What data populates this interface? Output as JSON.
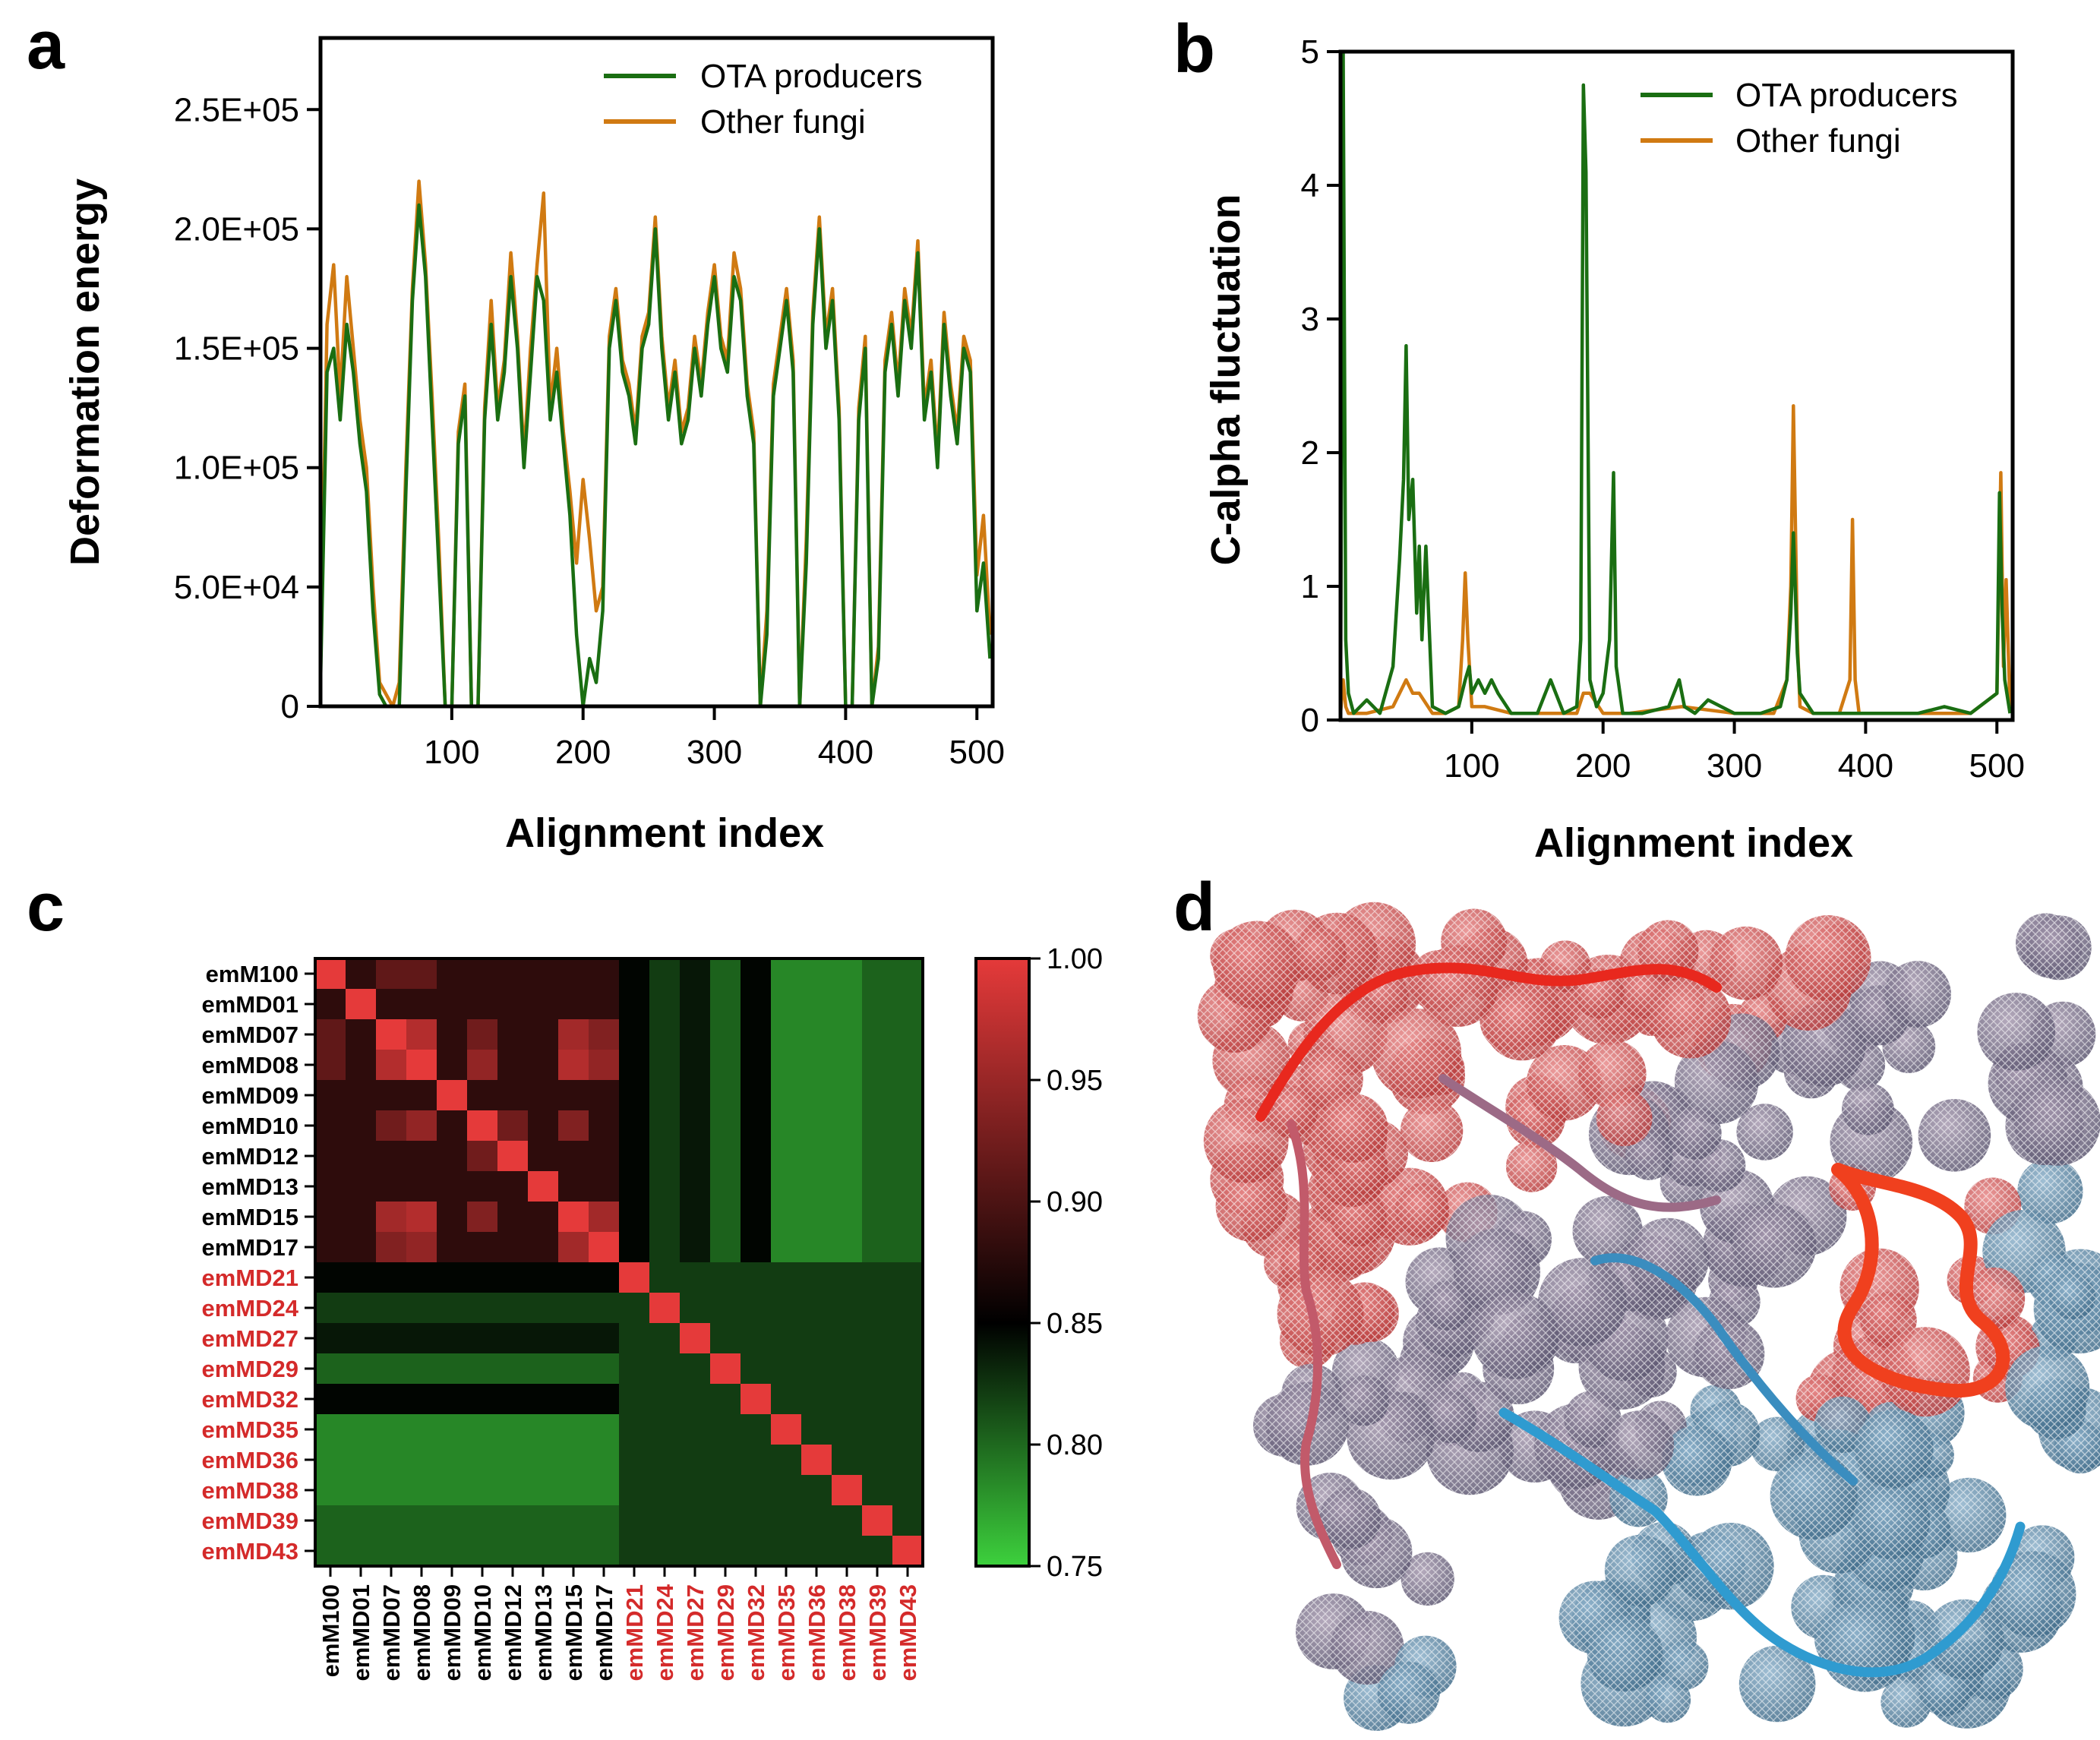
{
  "panels": {
    "a": "a",
    "b": "b",
    "c": "c",
    "d": "d"
  },
  "colors": {
    "ota": "#1a6e12",
    "other": "#d07a12",
    "heat_low": "#3dd13d",
    "heat_mid": "#000000",
    "heat_high": "#e53a3a",
    "label_black": "#000000",
    "label_red": "#d42a2a"
  },
  "chart_data": [
    {
      "id": "a",
      "type": "line",
      "title": "",
      "xlabel": "Alignment index",
      "ylabel": "Deformation energy",
      "xlim": [
        0,
        512
      ],
      "ylim": [
        0,
        280000
      ],
      "xticks": [
        100,
        200,
        300,
        400,
        500
      ],
      "xtick_labels": [
        "100",
        "200",
        "300",
        "400",
        "500"
      ],
      "yticks": [
        0,
        50000,
        100000,
        150000,
        200000,
        250000
      ],
      "ytick_labels": [
        "0",
        "5.0E+04",
        "1.0E+05",
        "1.5E+05",
        "2.0E+05",
        "2.5E+05"
      ],
      "legend": [
        "OTA producers",
        "Other fungi"
      ],
      "legend_position": "top-right",
      "series": [
        {
          "name": "OTA producers",
          "color": "#1a6e12",
          "x": [
            0,
            5,
            10,
            15,
            20,
            25,
            30,
            35,
            40,
            45,
            50,
            55,
            60,
            65,
            70,
            75,
            80,
            85,
            90,
            95,
            100,
            105,
            110,
            115,
            120,
            125,
            130,
            135,
            140,
            145,
            150,
            155,
            160,
            165,
            170,
            175,
            180,
            185,
            190,
            195,
            200,
            205,
            210,
            215,
            220,
            225,
            230,
            235,
            240,
            245,
            250,
            255,
            260,
            265,
            270,
            275,
            280,
            285,
            290,
            295,
            300,
            305,
            310,
            315,
            320,
            325,
            330,
            335,
            340,
            345,
            350,
            355,
            360,
            365,
            370,
            375,
            380,
            385,
            390,
            395,
            400,
            405,
            410,
            415,
            420,
            425,
            430,
            435,
            440,
            445,
            450,
            455,
            460,
            465,
            470,
            475,
            480,
            485,
            490,
            495,
            500,
            505,
            510
          ],
          "values": [
            10000,
            140000,
            150000,
            120000,
            160000,
            140000,
            110000,
            90000,
            40000,
            5000,
            0,
            0,
            0,
            90000,
            170000,
            210000,
            180000,
            120000,
            60000,
            0,
            0,
            110000,
            130000,
            0,
            0,
            120000,
            160000,
            120000,
            140000,
            180000,
            150000,
            100000,
            140000,
            180000,
            170000,
            120000,
            140000,
            110000,
            80000,
            30000,
            0,
            20000,
            10000,
            40000,
            150000,
            170000,
            140000,
            130000,
            110000,
            150000,
            160000,
            200000,
            150000,
            120000,
            140000,
            110000,
            120000,
            150000,
            130000,
            160000,
            180000,
            150000,
            140000,
            180000,
            170000,
            130000,
            110000,
            0,
            30000,
            130000,
            150000,
            170000,
            140000,
            0,
            60000,
            160000,
            200000,
            150000,
            170000,
            120000,
            0,
            0,
            120000,
            150000,
            0,
            20000,
            140000,
            160000,
            130000,
            170000,
            150000,
            190000,
            120000,
            140000,
            100000,
            160000,
            130000,
            110000,
            150000,
            140000,
            40000,
            60000,
            20000
          ]
        },
        {
          "name": "Other fungi",
          "color": "#d07a12",
          "x": [
            0,
            5,
            10,
            15,
            20,
            25,
            30,
            35,
            40,
            45,
            50,
            55,
            60,
            65,
            70,
            75,
            80,
            85,
            90,
            95,
            100,
            105,
            110,
            115,
            120,
            125,
            130,
            135,
            140,
            145,
            150,
            155,
            160,
            165,
            170,
            175,
            180,
            185,
            190,
            195,
            200,
            205,
            210,
            215,
            220,
            225,
            230,
            235,
            240,
            245,
            250,
            255,
            260,
            265,
            270,
            275,
            280,
            285,
            290,
            295,
            300,
            305,
            310,
            315,
            320,
            325,
            330,
            335,
            340,
            345,
            350,
            355,
            360,
            365,
            370,
            375,
            380,
            385,
            390,
            395,
            400,
            405,
            410,
            415,
            420,
            425,
            430,
            435,
            440,
            445,
            450,
            455,
            460,
            465,
            470,
            475,
            480,
            485,
            490,
            495,
            500,
            505,
            510
          ],
          "values": [
            20000,
            160000,
            185000,
            130000,
            180000,
            150000,
            120000,
            100000,
            50000,
            10000,
            5000,
            0,
            10000,
            100000,
            175000,
            220000,
            185000,
            130000,
            70000,
            0,
            0,
            115000,
            135000,
            0,
            0,
            125000,
            170000,
            125000,
            145000,
            190000,
            155000,
            105000,
            150000,
            185000,
            215000,
            125000,
            150000,
            115000,
            90000,
            60000,
            95000,
            70000,
            40000,
            50000,
            155000,
            175000,
            145000,
            135000,
            115000,
            155000,
            165000,
            205000,
            155000,
            125000,
            145000,
            115000,
            125000,
            155000,
            135000,
            165000,
            185000,
            155000,
            145000,
            190000,
            175000,
            135000,
            115000,
            0,
            40000,
            135000,
            155000,
            175000,
            145000,
            0,
            70000,
            165000,
            205000,
            155000,
            175000,
            125000,
            0,
            0,
            125000,
            155000,
            0,
            25000,
            145000,
            165000,
            135000,
            175000,
            155000,
            195000,
            125000,
            145000,
            105000,
            165000,
            135000,
            115000,
            155000,
            145000,
            55000,
            80000,
            30000
          ]
        }
      ]
    },
    {
      "id": "b",
      "type": "line",
      "title": "",
      "xlabel": "Alignment index",
      "ylabel": "C-alpha fluctuation",
      "xlim": [
        0,
        512
      ],
      "ylim": [
        0,
        5
      ],
      "xticks": [
        100,
        200,
        300,
        400,
        500
      ],
      "xtick_labels": [
        "100",
        "200",
        "300",
        "400",
        "500"
      ],
      "yticks": [
        0,
        1,
        2,
        3,
        4,
        5
      ],
      "ytick_labels": [
        "0",
        "1",
        "2",
        "3",
        "4",
        "5"
      ],
      "legend": [
        "OTA producers",
        "Other fungi"
      ],
      "legend_position": "top-right",
      "series": [
        {
          "name": "OTA producers",
          "color": "#1a6e12",
          "x": [
            0,
            2,
            4,
            6,
            10,
            20,
            30,
            40,
            45,
            48,
            50,
            52,
            55,
            58,
            60,
            62,
            65,
            70,
            80,
            90,
            95,
            98,
            100,
            105,
            110,
            115,
            120,
            130,
            150,
            160,
            170,
            180,
            183,
            185,
            187,
            190,
            195,
            200,
            205,
            208,
            210,
            215,
            230,
            250,
            258,
            262,
            270,
            280,
            300,
            320,
            335,
            340,
            343,
            345,
            348,
            350,
            360,
            380,
            390,
            400,
            420,
            440,
            460,
            480,
            500,
            502,
            504,
            506,
            510
          ],
          "x_note": "",
          "values": [
            0.1,
            5.0,
            0.6,
            0.2,
            0.05,
            0.15,
            0.05,
            0.4,
            1.2,
            1.8,
            2.8,
            1.5,
            1.8,
            0.8,
            1.3,
            0.6,
            1.3,
            0.1,
            0.05,
            0.1,
            0.3,
            0.4,
            0.2,
            0.3,
            0.2,
            0.3,
            0.2,
            0.05,
            0.05,
            0.3,
            0.05,
            0.1,
            0.6,
            4.75,
            4.1,
            0.3,
            0.1,
            0.2,
            0.6,
            1.85,
            0.4,
            0.05,
            0.05,
            0.1,
            0.3,
            0.1,
            0.05,
            0.15,
            0.05,
            0.05,
            0.1,
            0.3,
            0.8,
            1.4,
            0.5,
            0.2,
            0.05,
            0.05,
            0.05,
            0.05,
            0.05,
            0.05,
            0.1,
            0.05,
            0.2,
            1.7,
            0.8,
            0.3,
            0.05
          ]
        },
        {
          "name": "Other fungi",
          "color": "#d07a12",
          "x": [
            0,
            2,
            4,
            6,
            10,
            20,
            40,
            50,
            55,
            60,
            70,
            80,
            90,
            93,
            95,
            97,
            100,
            110,
            130,
            150,
            180,
            185,
            190,
            200,
            220,
            260,
            300,
            330,
            340,
            343,
            345,
            348,
            350,
            360,
            380,
            388,
            390,
            392,
            395,
            400,
            440,
            480,
            500,
            503,
            505,
            507,
            510
          ],
          "values": [
            0.05,
            0.3,
            0.1,
            0.05,
            0.05,
            0.05,
            0.1,
            0.3,
            0.2,
            0.2,
            0.05,
            0.05,
            0.1,
            0.6,
            1.1,
            0.6,
            0.1,
            0.1,
            0.05,
            0.05,
            0.05,
            0.2,
            0.2,
            0.05,
            0.05,
            0.1,
            0.05,
            0.05,
            0.3,
            1.0,
            2.35,
            0.6,
            0.1,
            0.05,
            0.05,
            0.3,
            1.5,
            0.3,
            0.05,
            0.05,
            0.05,
            0.05,
            0.2,
            1.85,
            0.4,
            1.05,
            0.1
          ]
        }
      ]
    },
    {
      "id": "c",
      "type": "heatmap",
      "title": "",
      "labels": [
        "emM100",
        "emMD01",
        "emMD07",
        "emMD08",
        "emMD09",
        "emMD10",
        "emMD12",
        "emMD13",
        "emMD15",
        "emMD17",
        "emMD21",
        "emMD24",
        "emMD27",
        "emMD29",
        "emMD32",
        "emMD35",
        "emMD36",
        "emMD38",
        "emMD39",
        "emMD43"
      ],
      "highlighted_from_index": 10,
      "colorbar_range": [
        0.75,
        1.0
      ],
      "colorbar_ticks": [
        1.0,
        0.95,
        0.9,
        0.85,
        0.8,
        0.75
      ],
      "colorbar_tick_labels": [
        "1.00",
        "0.95",
        "0.90",
        "0.85",
        "0.80",
        "0.75"
      ],
      "groups": {
        "black": [
          0,
          1,
          2,
          3,
          4,
          5,
          6,
          7,
          8,
          9
        ],
        "red": [
          10,
          11,
          12,
          13,
          14,
          15,
          16,
          17,
          18,
          19
        ]
      },
      "within_black_base": 0.89,
      "within_black_high_pairs": [
        [
          2,
          3,
          0.97
        ],
        [
          2,
          5,
          0.93
        ],
        [
          2,
          8,
          0.96
        ],
        [
          2,
          9,
          0.94
        ],
        [
          3,
          5,
          0.95
        ],
        [
          3,
          8,
          0.97
        ],
        [
          3,
          9,
          0.95
        ],
        [
          5,
          6,
          0.93
        ],
        [
          5,
          8,
          0.94
        ],
        [
          8,
          9,
          0.96
        ],
        [
          0,
          2,
          0.92
        ],
        [
          0,
          3,
          0.92
        ]
      ],
      "cross_base": 0.79,
      "within_red_base": 0.83,
      "row_offsets_red": [
        0.07,
        0.04,
        0.06,
        0.02,
        0.07,
        0.0,
        0.0,
        0.0,
        0.02,
        0.02
      ]
    }
  ],
  "panel_d": {
    "description_shown": "",
    "colors": {
      "high": "#e8281e",
      "mid": "#8a5a7a",
      "low": "#2f9bd0"
    }
  }
}
